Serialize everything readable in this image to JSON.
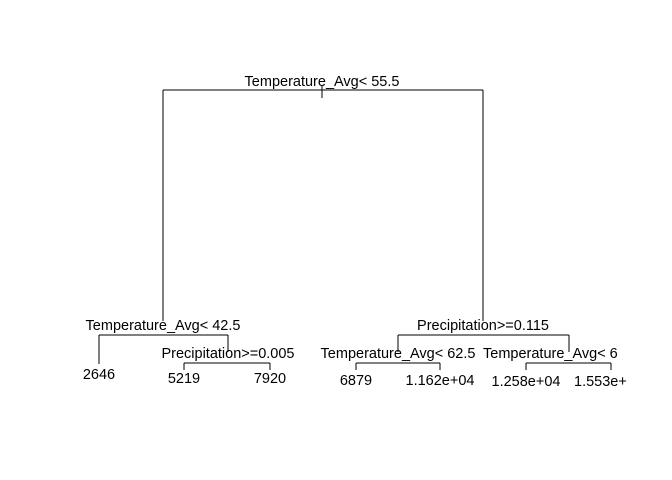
{
  "tree": {
    "root": {
      "split": "Temperature_Avg< 55.5",
      "left": {
        "split": "Temperature_Avg< 42.5",
        "left": {
          "leaf": "2646"
        },
        "right": {
          "split": "Precipitation>=0.005",
          "left": {
            "leaf": "5219"
          },
          "right": {
            "leaf": "7920"
          }
        }
      },
      "right": {
        "split": "Precipitation>=0.115",
        "left": {
          "split": "Temperature_Avg< 62.5",
          "left": {
            "leaf": "6879"
          },
          "right": {
            "leaf": "1.162e+04"
          }
        },
        "right": {
          "split": "Temperature_Avg< 6",
          "left": {
            "leaf": "1.258e+04"
          },
          "right": {
            "leaf": "1.553e+"
          }
        }
      }
    }
  }
}
